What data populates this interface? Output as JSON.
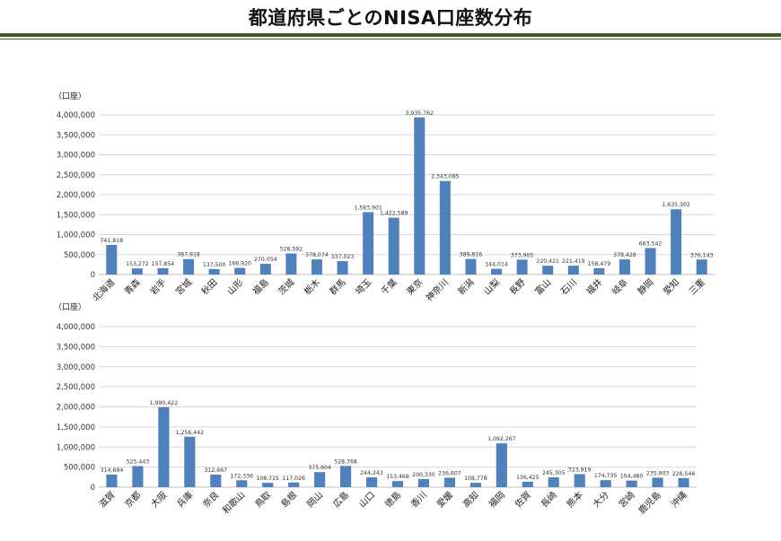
{
  "header": {
    "title": "都道府県ごとのNISA口座数分布"
  },
  "chart_data": [
    {
      "type": "bar",
      "ylabel": "（口座）",
      "ylim": [
        0,
        4000000
      ],
      "yticks": [
        "0",
        "500,000",
        "1,000,000",
        "1,500,000",
        "2,000,000",
        "2,500,000",
        "3,000,000",
        "3,500,000",
        "4,000,000"
      ],
      "grid": true,
      "color": "#4f81bd",
      "categories": [
        "北海道",
        "青森",
        "岩手",
        "宮城",
        "秋田",
        "山形",
        "福島",
        "茨城",
        "栃木",
        "群馬",
        "埼玉",
        "千葉",
        "東京",
        "神奈川",
        "新潟",
        "山梨",
        "長野",
        "富山",
        "石川",
        "福井",
        "岐阜",
        "静岡",
        "愛知",
        "三重"
      ],
      "values": [
        741818,
        153272,
        157854,
        387918,
        137500,
        166920,
        270054,
        528592,
        378074,
        337023,
        1563901,
        1422589,
        3935762,
        2343085,
        389816,
        144014,
        373905,
        220421,
        221419,
        158479,
        378428,
        663542,
        1635302,
        376143
      ],
      "labels": [
        "741,818",
        "153,272",
        "157,854",
        "387,918",
        "137,500",
        "166,920",
        "270,054",
        "528,592",
        "378,074",
        "337,023",
        "1,563,901",
        "1,422,589",
        "3,935,762",
        "2,343,085",
        "389,816",
        "144,014",
        "373,905",
        "220,421",
        "221,419",
        "158,479",
        "378,428",
        "663,542",
        "1,635,302",
        "376,143"
      ]
    },
    {
      "type": "bar",
      "ylabel": "（口座）",
      "ylim": [
        0,
        4000000
      ],
      "yticks": [
        "0",
        "500,000",
        "1,000,000",
        "1,500,000",
        "2,000,000",
        "2,500,000",
        "3,000,000",
        "3,500,000",
        "4,000,000"
      ],
      "grid": true,
      "color": "#4f81bd",
      "categories": [
        "滋賀",
        "京都",
        "大阪",
        "兵庫",
        "奈良",
        "和歌山",
        "鳥取",
        "島根",
        "岡山",
        "広島",
        "山口",
        "徳島",
        "香川",
        "愛媛",
        "高知",
        "福岡",
        "佐賀",
        "長崎",
        "熊本",
        "大分",
        "宮崎",
        "鹿児島",
        "沖縄"
      ],
      "values": [
        314694,
        525443,
        1990422,
        1256442,
        312667,
        172336,
        108725,
        117026,
        375604,
        528768,
        244243,
        153468,
        200330,
        236607,
        108778,
        1092267,
        136425,
        245305,
        323919,
        174735,
        164480,
        235903,
        226546
      ],
      "labels": [
        "314,694",
        "525,443",
        "1,990,422",
        "1,256,442",
        "312,667",
        "172,336",
        "108,725",
        "117,026",
        "375,604",
        "528,768",
        "244,243",
        "153,468",
        "200,330",
        "236,607",
        "108,778",
        "1,092,267",
        "136,425",
        "245,305",
        "323,919",
        "174,735",
        "164,480",
        "235,903",
        "226,546"
      ]
    }
  ]
}
